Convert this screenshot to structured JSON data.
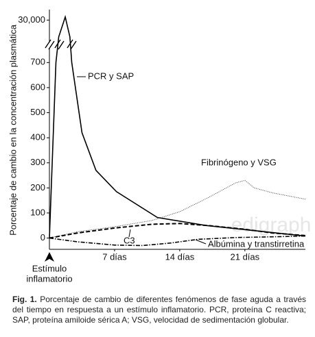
{
  "chart_data": {
    "type": "line",
    "ylabel": "Porcentaje de cambio en la concentración plasmática",
    "xlim": [
      0,
      27.5
    ],
    "ylim": [
      -45,
      30500
    ],
    "ybreak": [
      750,
      29000
    ],
    "yticks": [
      0,
      100,
      200,
      300,
      400,
      500,
      600,
      700,
      {
        "value": 30000,
        "label": "30,000"
      }
    ],
    "xticks": [
      {
        "value": 7,
        "label": "7 días"
      },
      {
        "value": 14,
        "label": "14 días"
      },
      {
        "value": 21,
        "label": "21 días"
      }
    ],
    "origin_label": [
      "Estímulo",
      "inflamatorio"
    ],
    "grid": false,
    "series": [
      {
        "name": "PCR y SAP",
        "color": "#000000",
        "dash": "none",
        "width": 1.6,
        "x": [
          0,
          0.7,
          1.0,
          1.7,
          2.2,
          2.4,
          3.5,
          5,
          7.2,
          11.6,
          16.8,
          22.7,
          27.5
        ],
        "values": [
          0,
          700,
          29200,
          30150,
          29200,
          700,
          420,
          270,
          185,
          82,
          50,
          27,
          8
        ]
      },
      {
        "name": "Fibrinógeno y VSG",
        "color": "#333333",
        "dash": "1 1.5",
        "width": 1,
        "x": [
          0,
          3,
          7,
          11,
          14,
          17,
          20,
          21,
          22,
          24,
          27.5
        ],
        "values": [
          0,
          25,
          45,
          70,
          105,
          160,
          220,
          230,
          200,
          180,
          155
        ]
      },
      {
        "name": "C3",
        "color": "#000000",
        "dash": "6 3",
        "width": 2,
        "x": [
          0,
          3,
          7,
          11,
          14,
          17,
          21,
          24,
          27.5
        ],
        "values": [
          0,
          20,
          40,
          55,
          58,
          50,
          35,
          20,
          10
        ]
      },
      {
        "name": "Albúmina y transtirretina",
        "color": "#000000",
        "dash": "6 2 1.5 2",
        "width": 1.6,
        "x": [
          0,
          3,
          7,
          10,
          13,
          16,
          20,
          24,
          27.5
        ],
        "values": [
          0,
          -15,
          -28,
          -30,
          -20,
          -5,
          2,
          5,
          8
        ]
      }
    ],
    "watermark": "edigraph",
    "caption": {
      "label": "Fig. 1.",
      "text": "Porcentaje de cambio de diferentes fenómenos de fase aguda a través del tiempo en respuesta a un estímulo inflamatorio. PCR, proteína C reactiva; SAP, proteína amiloide sérica A; VSG, velocidad de sedimentación globular."
    }
  }
}
